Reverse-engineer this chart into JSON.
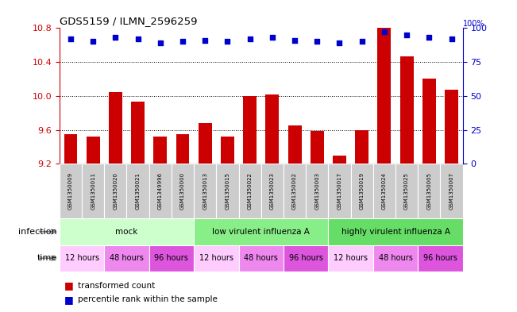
{
  "title": "GDS5159 / ILMN_2596259",
  "samples": [
    "GSM1350009",
    "GSM1350011",
    "GSM1350020",
    "GSM1350021",
    "GSM1349996",
    "GSM1350000",
    "GSM1350013",
    "GSM1350015",
    "GSM1350022",
    "GSM1350023",
    "GSM1350002",
    "GSM1350003",
    "GSM1350017",
    "GSM1350019",
    "GSM1350024",
    "GSM1350025",
    "GSM1350005",
    "GSM1350007"
  ],
  "bar_values": [
    9.55,
    9.52,
    10.05,
    9.93,
    9.52,
    9.55,
    9.68,
    9.52,
    10.0,
    10.02,
    9.65,
    9.59,
    9.3,
    9.6,
    10.8,
    10.47,
    10.2,
    10.07
  ],
  "dot_values": [
    92,
    90,
    93,
    92,
    89,
    90,
    91,
    90,
    92,
    93,
    91,
    90,
    89,
    90,
    97,
    95,
    93,
    92
  ],
  "ylim_left": [
    9.2,
    10.8
  ],
  "ylim_right": [
    0,
    100
  ],
  "yticks_left": [
    9.2,
    9.6,
    10.0,
    10.4,
    10.8
  ],
  "yticks_right": [
    0,
    25,
    50,
    75,
    100
  ],
  "bar_color": "#cc0000",
  "dot_color": "#0000cc",
  "inf_data": [
    {
      "label": "mock",
      "start": 0,
      "end": 6,
      "color": "#ccffcc"
    },
    {
      "label": "low virulent influenza A",
      "start": 6,
      "end": 12,
      "color": "#88ee88"
    },
    {
      "label": "highly virulent influenza A",
      "start": 12,
      "end": 18,
      "color": "#66dd66"
    }
  ],
  "time_data": [
    {
      "label": "12 hours",
      "start": 0,
      "end": 2,
      "color": "#ffccff"
    },
    {
      "label": "48 hours",
      "start": 2,
      "end": 4,
      "color": "#ee88ee"
    },
    {
      "label": "96 hours",
      "start": 4,
      "end": 6,
      "color": "#dd55dd"
    },
    {
      "label": "12 hours",
      "start": 6,
      "end": 8,
      "color": "#ffccff"
    },
    {
      "label": "48 hours",
      "start": 8,
      "end": 10,
      "color": "#ee88ee"
    },
    {
      "label": "96 hours",
      "start": 10,
      "end": 12,
      "color": "#dd55dd"
    },
    {
      "label": "12 hours",
      "start": 12,
      "end": 14,
      "color": "#ffccff"
    },
    {
      "label": "48 hours",
      "start": 14,
      "end": 16,
      "color": "#ee88ee"
    },
    {
      "label": "96 hours",
      "start": 16,
      "end": 18,
      "color": "#dd55dd"
    }
  ],
  "legend_bar_label": "transformed count",
  "legend_dot_label": "percentile rank within the sample",
  "xlabel_infection": "infection",
  "xlabel_time": "time",
  "background_color": "#ffffff",
  "sample_box_color": "#cccccc",
  "dotted_grid_values": [
    9.6,
    10.0,
    10.4
  ]
}
